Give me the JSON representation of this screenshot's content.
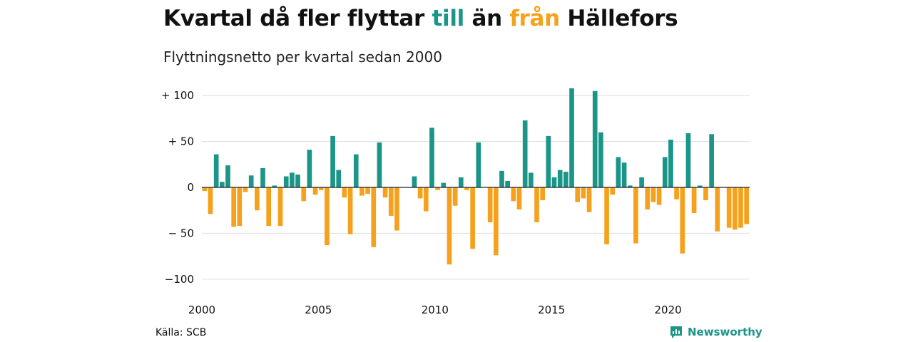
{
  "header": {
    "title_pre": "Kvartal då fler flyttar ",
    "title_till": "till",
    "title_mid": " än ",
    "title_fran": "från",
    "title_post": " Hällefors",
    "subtitle": "Flyttningsnetto per kvartal sedan 2000"
  },
  "footer": {
    "source": "Källa: SCB",
    "brand": "Newsworthy"
  },
  "colors": {
    "positive": "#1a9588",
    "negative": "#f5a11c",
    "grid": "#dddddd",
    "axis": "#222222"
  },
  "chart_data": {
    "type": "bar",
    "title": "Kvartal då fler flyttar till än från Hällefors",
    "subtitle": "Flyttningsnetto per kvartal sedan 2000",
    "ylim": [
      -100,
      110
    ],
    "yticks": [
      100,
      50,
      0,
      -50,
      -100
    ],
    "ytick_labels": [
      "+ 100",
      "+  50",
      "0",
      "− 50",
      "−100"
    ],
    "xticks": [
      2000,
      2005,
      2010,
      2015,
      2020
    ],
    "xtick_labels": [
      "2000",
      "2005",
      "2010",
      "2015",
      "2020"
    ],
    "grid": true,
    "start_year": 2000,
    "periods_per_year": 4,
    "values": [
      -4,
      -29,
      36,
      6,
      24,
      -43,
      -42,
      -5,
      13,
      -25,
      21,
      -42,
      2,
      -42,
      12,
      16,
      14,
      -15,
      41,
      -8,
      -3,
      -63,
      56,
      19,
      -11,
      -51,
      36,
      -9,
      -7,
      -65,
      49,
      -11,
      -31,
      -47,
      0,
      0,
      12,
      -12,
      -26,
      65,
      -3,
      5,
      -84,
      -20,
      11,
      -3,
      -67,
      49,
      0,
      -38,
      -74,
      18,
      7,
      -15,
      -24,
      73,
      16,
      -38,
      -14,
      56,
      11,
      19,
      17,
      108,
      -16,
      -12,
      -27,
      105,
      60,
      -62,
      -8,
      33,
      27,
      2,
      -61,
      11,
      -24,
      -16,
      -19,
      33,
      52,
      -13,
      -72,
      59,
      -28,
      2,
      -14,
      58,
      -48,
      0,
      -44,
      -46,
      -44,
      -40
    ]
  }
}
